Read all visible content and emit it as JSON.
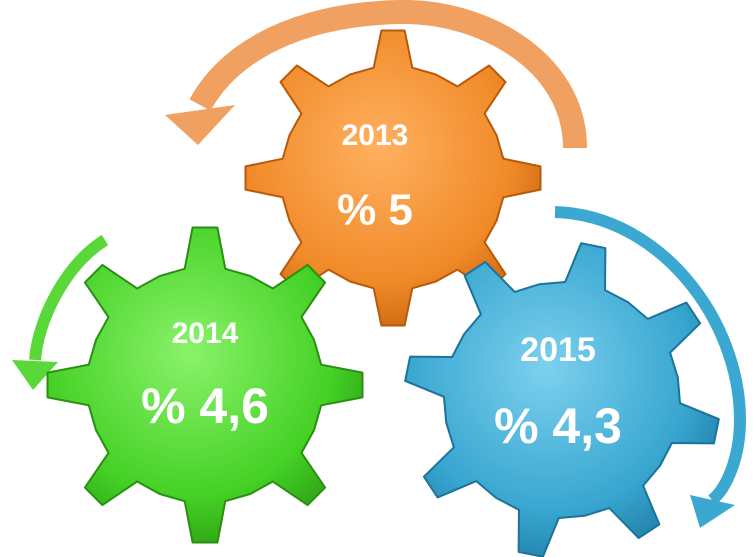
{
  "nodes": [
    {
      "year": "2013",
      "value": "% 5"
    },
    {
      "year": "2014",
      "value": "% 4,6"
    },
    {
      "year": "2015",
      "value": "% 4,3"
    }
  ]
}
